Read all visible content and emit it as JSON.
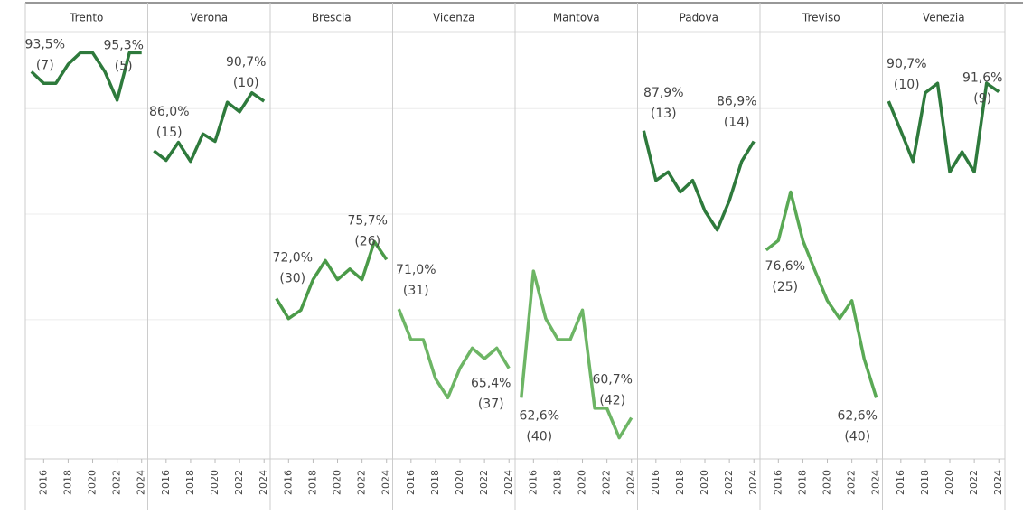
{
  "chart_data": {
    "type": "line",
    "x": [
      2015,
      2016,
      2017,
      2018,
      2019,
      2020,
      2021,
      2022,
      2023,
      2024
    ],
    "xlim": [
      2014.5,
      2024.5
    ],
    "xticks": [
      2016,
      2018,
      2020,
      2022,
      2024
    ],
    "ylim": [
      56.8,
      97.3
    ],
    "yticks": [
      60,
      70,
      80,
      90
    ],
    "grid": true,
    "series": [
      {
        "name": "Trento",
        "color": "#2e7a3c",
        "values": [
          93.5,
          92.4,
          92.4,
          94.2,
          95.3,
          95.3,
          93.5,
          90.8,
          95.3,
          95.3
        ],
        "value_labels": [
          "93,5%",
          null,
          null,
          null,
          null,
          null,
          null,
          null,
          null,
          "95,3%"
        ],
        "rank_labels": [
          "(7)",
          null,
          null,
          null,
          null,
          null,
          null,
          null,
          null,
          "(5)"
        ]
      },
      {
        "name": "Verona",
        "color": "#2e7a3c",
        "values": [
          86.0,
          85.1,
          86.8,
          85.0,
          87.6,
          86.9,
          90.6,
          89.7,
          91.5,
          90.7
        ],
        "value_labels": [
          "86,0%",
          null,
          null,
          null,
          null,
          null,
          null,
          null,
          null,
          "90,7%"
        ],
        "rank_labels": [
          "(15)",
          null,
          null,
          null,
          null,
          null,
          null,
          null,
          null,
          "(10)"
        ]
      },
      {
        "name": "Brescia",
        "color": "#4a9a48",
        "values": [
          72.0,
          70.1,
          70.9,
          73.8,
          75.6,
          73.8,
          74.8,
          73.8,
          77.4,
          75.7
        ],
        "value_labels": [
          "72,0%",
          null,
          null,
          null,
          null,
          null,
          null,
          null,
          null,
          "75,7%"
        ],
        "rank_labels": [
          "(30)",
          null,
          null,
          null,
          null,
          null,
          null,
          null,
          null,
          "(26)"
        ]
      },
      {
        "name": "Vicenza",
        "color": "#6db565",
        "values": [
          71.0,
          68.1,
          68.1,
          64.4,
          62.6,
          65.4,
          67.3,
          66.3,
          67.3,
          65.4
        ],
        "value_labels": [
          "71,0%",
          null,
          null,
          null,
          null,
          null,
          null,
          null,
          null,
          "65,4%"
        ],
        "rank_labels": [
          "(31)",
          null,
          null,
          null,
          null,
          null,
          null,
          null,
          null,
          "(37)"
        ]
      },
      {
        "name": "Mantova",
        "color": "#6db565",
        "values": [
          62.6,
          74.6,
          70.1,
          68.1,
          68.1,
          70.9,
          61.6,
          61.6,
          58.8,
          60.7
        ],
        "value_labels": [
          "62,6%",
          null,
          null,
          null,
          null,
          null,
          null,
          null,
          null,
          "60,7%"
        ],
        "rank_labels": [
          "(40)",
          null,
          null,
          null,
          null,
          null,
          null,
          null,
          null,
          "(42)"
        ]
      },
      {
        "name": "Padova",
        "color": "#2e7a3c",
        "values": [
          87.9,
          83.2,
          84.0,
          82.1,
          83.2,
          80.3,
          78.5,
          81.3,
          85.0,
          86.9
        ],
        "value_labels": [
          "87,9%",
          null,
          null,
          null,
          null,
          null,
          null,
          null,
          null,
          "86,9%"
        ],
        "rank_labels": [
          "(13)",
          null,
          null,
          null,
          null,
          null,
          null,
          null,
          null,
          "(14)"
        ]
      },
      {
        "name": "Treviso",
        "color": "#5aa955",
        "values": [
          76.6,
          77.5,
          82.1,
          77.5,
          74.6,
          71.8,
          70.1,
          71.8,
          66.3,
          62.6
        ],
        "value_labels": [
          "76,6%",
          null,
          null,
          null,
          null,
          null,
          null,
          null,
          null,
          "62,6%"
        ],
        "rank_labels": [
          "(25)",
          null,
          null,
          null,
          null,
          null,
          null,
          null,
          null,
          "(40)"
        ]
      },
      {
        "name": "Venezia",
        "color": "#2e7a3c",
        "values": [
          90.7,
          87.9,
          85.0,
          91.5,
          92.4,
          84.0,
          85.9,
          84.0,
          92.4,
          91.6
        ],
        "value_labels": [
          "90,7%",
          null,
          null,
          null,
          null,
          null,
          null,
          null,
          null,
          "91,6%"
        ],
        "rank_labels": [
          "(10)",
          null,
          null,
          null,
          null,
          null,
          null,
          null,
          null,
          "(9)"
        ]
      }
    ]
  }
}
